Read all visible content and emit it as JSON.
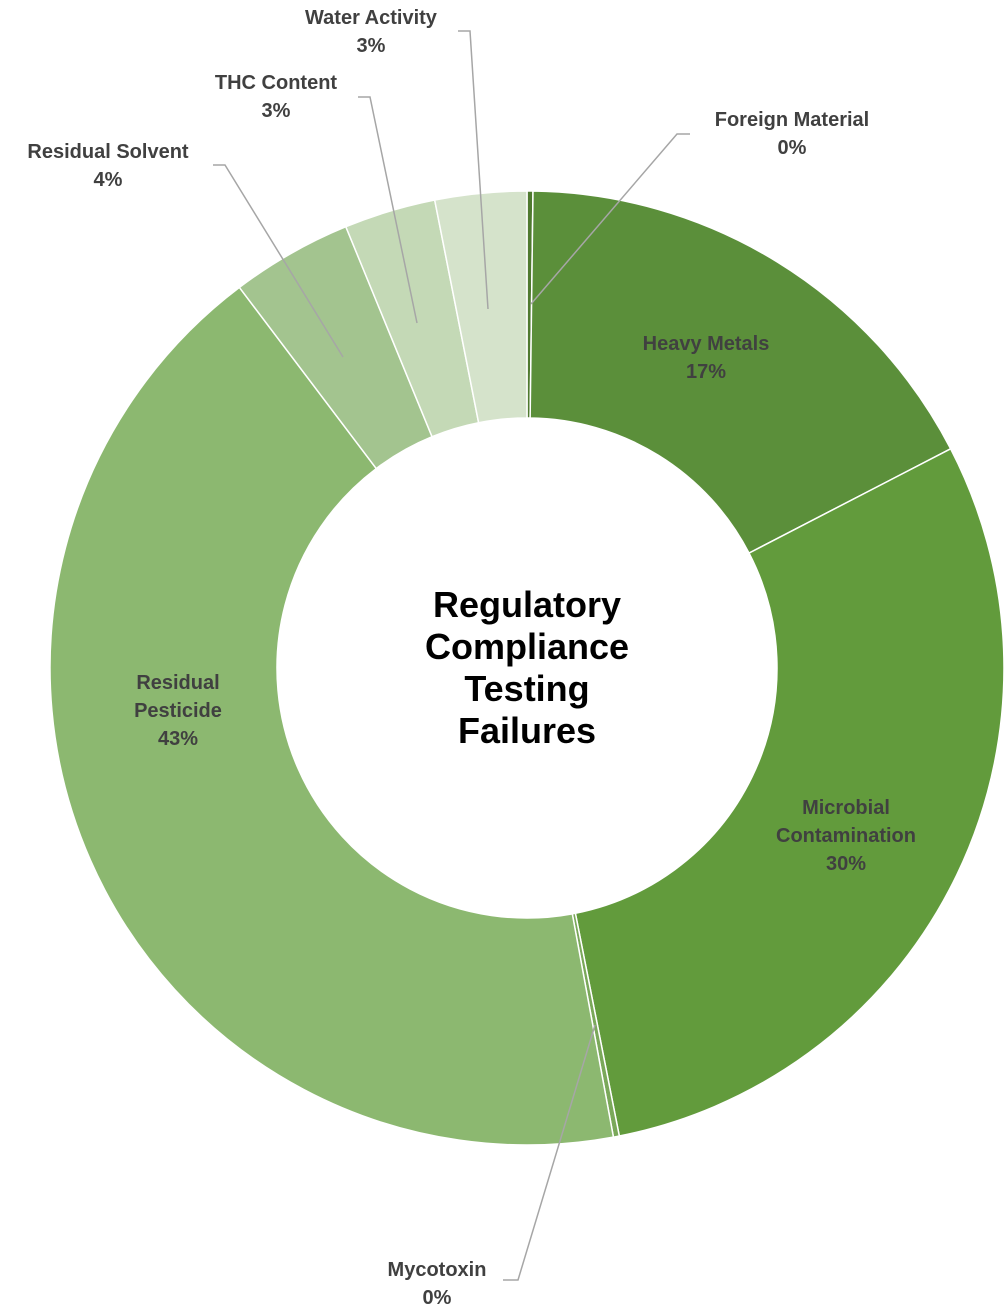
{
  "chart_data": {
    "type": "donut",
    "title": "Regulatory Compliance Testing Failures",
    "categories": [
      "Foreign Material",
      "Heavy Metals",
      "Microbial Contamination",
      "Mycotoxin",
      "Residual Pesticide",
      "Residual Solvent",
      "THC Content",
      "Water Activity"
    ],
    "values": [
      0.2,
      17.2,
      29.5,
      0.2,
      42.6,
      4.1,
      3.1,
      3.1
    ],
    "value_labels": [
      "0%",
      "17%",
      "30%",
      "0%",
      "43%",
      "4%",
      "3%",
      "3%"
    ],
    "colors": [
      "#4f7a2f",
      "#5b8f3a",
      "#629b3c",
      "#7aa85a",
      "#8cb870",
      "#a3c48f",
      "#c4d9b6",
      "#d5e3cb"
    ]
  }
}
